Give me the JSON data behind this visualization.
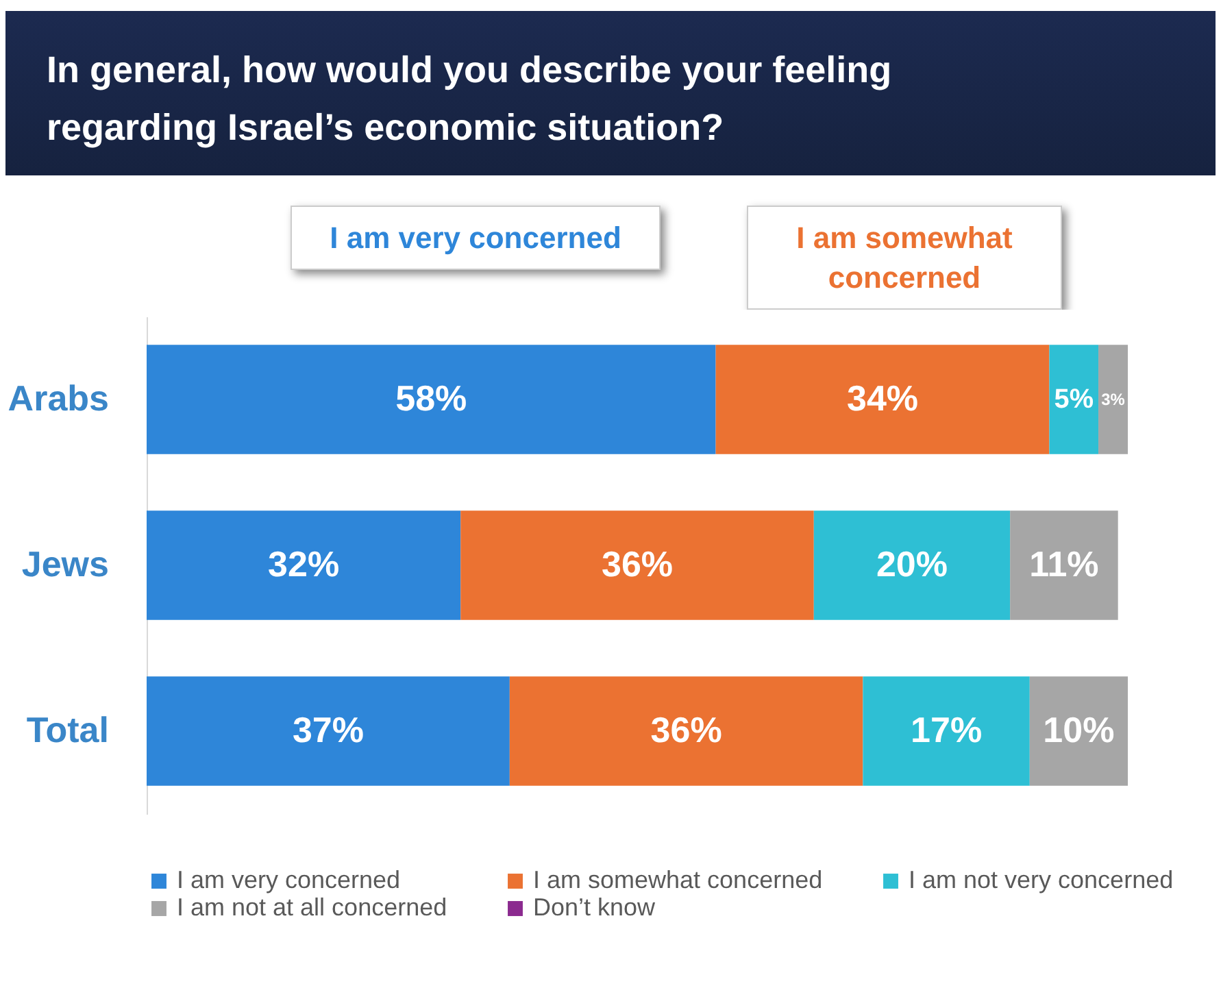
{
  "chart_data": {
    "type": "bar",
    "orientation": "horizontal",
    "stacked": true,
    "title": "In general, how would you describe your feeling regarding Israel’s economic situation?",
    "categories": [
      "Arabs",
      "Jews",
      "Total"
    ],
    "series": [
      {
        "name": "I am very concerned",
        "color": "#2e86d9",
        "values": [
          58,
          32,
          37
        ],
        "value_labels": [
          "58%",
          "32%",
          "37%"
        ]
      },
      {
        "name": "I am somewhat concerned",
        "color": "#eb7232",
        "values": [
          34,
          36,
          36
        ],
        "value_labels": [
          "34%",
          "36%",
          "36%"
        ]
      },
      {
        "name": "I am not very concerned",
        "color": "#2ebfd4",
        "values": [
          5,
          20,
          17
        ],
        "value_labels": [
          "5%",
          "20%",
          "17%"
        ]
      },
      {
        "name": "I am not at all concerned",
        "color": "#a6a6a6",
        "values": [
          3,
          11,
          10
        ],
        "value_labels": [
          "3%",
          "11%",
          "10%"
        ]
      },
      {
        "name": "Don’t know",
        "color": "#8b2a8f",
        "values": [
          null,
          null,
          null
        ],
        "value_labels": [
          null,
          null,
          null
        ]
      }
    ],
    "annotations": [
      "I am very concerned",
      "I am somewhat concerned"
    ],
    "xlim": [
      0,
      100
    ],
    "tick_labels": "y",
    "legend": "bottom"
  }
}
